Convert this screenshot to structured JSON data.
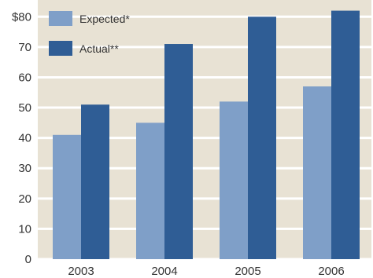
{
  "chart_data": {
    "type": "bar",
    "categories": [
      "2003",
      "2004",
      "2005",
      "2006"
    ],
    "series": [
      {
        "name": "Expected*",
        "values": [
          41,
          45,
          52,
          57
        ]
      },
      {
        "name": "Actual**",
        "values": [
          51,
          71,
          80,
          82
        ]
      }
    ],
    "ylim": [
      0,
      85
    ],
    "yticks": [
      0,
      10,
      20,
      30,
      40,
      50,
      60,
      70,
      80
    ],
    "ytick_labels": [
      "0",
      "10",
      "20",
      "30",
      "40",
      "50",
      "60",
      "70",
      "$80"
    ],
    "grid": true,
    "legend_position": "top-left",
    "colors": {
      "background": "#e8e2d4",
      "grid": "#ffffff",
      "expected": "#7f9fc8",
      "actual": "#2f5d95"
    }
  }
}
